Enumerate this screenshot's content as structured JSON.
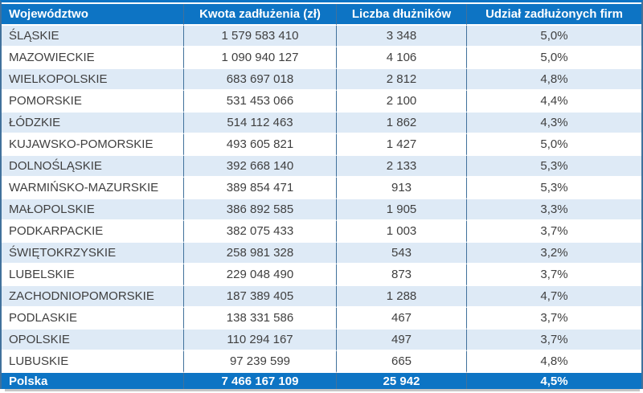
{
  "chart_data": {
    "type": "table",
    "columns": [
      "Województwo",
      "Kwota zadłużenia (zł)",
      "Liczba dłużników",
      "Udział zadłużonych firm"
    ],
    "rows": [
      [
        "ŚLĄSKIE",
        "1 579 583 410",
        "3 348",
        "5,0%"
      ],
      [
        "MAZOWIECKIE",
        "1 090 940 127",
        "4 106",
        "5,0%"
      ],
      [
        "WIELKOPOLSKIE",
        "683 697 018",
        "2 812",
        "4,8%"
      ],
      [
        "POMORSKIE",
        "531 453 066",
        "2 100",
        "4,4%"
      ],
      [
        "ŁÓDZKIE",
        "514 112 463",
        "1 862",
        "4,3%"
      ],
      [
        "KUJAWSKO-POMORSKIE",
        "493 605 821",
        "1 427",
        "5,0%"
      ],
      [
        "DOLNOŚLĄSKIE",
        "392 668 140",
        "2 133",
        "5,3%"
      ],
      [
        "WARMIŃSKO-MAZURSKIE",
        "389 854 471",
        "913",
        "5,3%"
      ],
      [
        "MAŁOPOLSKIE",
        "386 892 585",
        "1 905",
        "3,3%"
      ],
      [
        "PODKARPACKIE",
        "382 075 433",
        "1 003",
        "3,7%"
      ],
      [
        "ŚWIĘTOKRZYSKIE",
        "258 981 328",
        "543",
        "3,2%"
      ],
      [
        "LUBELSKIE",
        "229 048 490",
        "873",
        "3,7%"
      ],
      [
        "ZACHODNIOPOMORSKIE",
        "187 389 405",
        "1 288",
        "4,7%"
      ],
      [
        "PODLASKIE",
        "138 331 586",
        "467",
        "3,7%"
      ],
      [
        "OPOLSKIE",
        "110 294 167",
        "497",
        "3,7%"
      ],
      [
        "LUBUSKIE",
        "97 239 599",
        "665",
        "4,8%"
      ]
    ],
    "footer": [
      "Polska",
      "7 466 167 109",
      "25 942",
      "4,5%"
    ]
  },
  "colors": {
    "header_bg": "#0d74c4",
    "footer_bg": "#0d74c4",
    "row_alt_bg": "#deeaf6",
    "row_bg": "#ffffff",
    "divider": "#41719c",
    "body_text": "#3f3f3f",
    "header_text": "#ffffff",
    "shadow": "#c6c6c6"
  }
}
